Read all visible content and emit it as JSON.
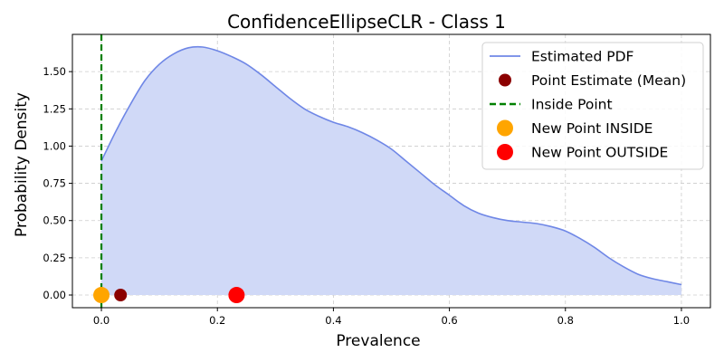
{
  "chart_data": {
    "type": "area",
    "title": "ConfidenceEllipseCLR - Class 1",
    "xlabel": "Prevalence",
    "ylabel": "Probability Density",
    "xlim": [
      -0.05,
      1.05
    ],
    "ylim": [
      -0.085,
      1.75
    ],
    "xticks": [
      0.0,
      0.2,
      0.4,
      0.6,
      0.8,
      1.0
    ],
    "xtick_labels": [
      "0.0",
      "0.2",
      "0.4",
      "0.6",
      "0.8",
      "1.0"
    ],
    "yticks": [
      0.0,
      0.25,
      0.5,
      0.75,
      1.0,
      1.25,
      1.5
    ],
    "ytick_labels": [
      "0.00",
      "0.25",
      "0.50",
      "0.75",
      "1.00",
      "1.25",
      "1.50"
    ],
    "grid": true,
    "legend_position": "top-right",
    "colors": {
      "pdf_line": "#6f87e6",
      "pdf_fill": "#d0d9f7",
      "point_estimate": "#8b0000",
      "inside_line": "#008000",
      "new_inside": "#ffa500",
      "new_outside": "#ff0000"
    },
    "series": [
      {
        "name": "Estimated PDF",
        "kind": "line_fill",
        "x": [
          0.0,
          0.025,
          0.05,
          0.075,
          0.1,
          0.125,
          0.15,
          0.175,
          0.2,
          0.225,
          0.25,
          0.275,
          0.3,
          0.325,
          0.35,
          0.375,
          0.4,
          0.425,
          0.45,
          0.475,
          0.5,
          0.525,
          0.55,
          0.575,
          0.6,
          0.625,
          0.65,
          0.675,
          0.7,
          0.725,
          0.75,
          0.775,
          0.8,
          0.825,
          0.85,
          0.875,
          0.9,
          0.925,
          0.95,
          0.975,
          1.0
        ],
        "y": [
          0.9,
          1.1,
          1.28,
          1.44,
          1.55,
          1.62,
          1.66,
          1.665,
          1.64,
          1.6,
          1.55,
          1.48,
          1.4,
          1.32,
          1.25,
          1.2,
          1.16,
          1.13,
          1.09,
          1.04,
          0.98,
          0.9,
          0.82,
          0.74,
          0.67,
          0.6,
          0.55,
          0.52,
          0.5,
          0.49,
          0.48,
          0.46,
          0.43,
          0.38,
          0.32,
          0.25,
          0.19,
          0.14,
          0.11,
          0.09,
          0.07
        ]
      },
      {
        "name": "Point Estimate (Mean)",
        "kind": "point",
        "x": [
          0.033
        ],
        "y": [
          0.0
        ]
      },
      {
        "name": "Inside Point",
        "kind": "vline",
        "x": [
          0.0
        ]
      },
      {
        "name": "New Point INSIDE",
        "kind": "point",
        "x": [
          0.0
        ],
        "y": [
          0.0
        ]
      },
      {
        "name": "New Point OUTSIDE",
        "kind": "point",
        "x": [
          0.233
        ],
        "y": [
          0.0
        ]
      }
    ]
  }
}
